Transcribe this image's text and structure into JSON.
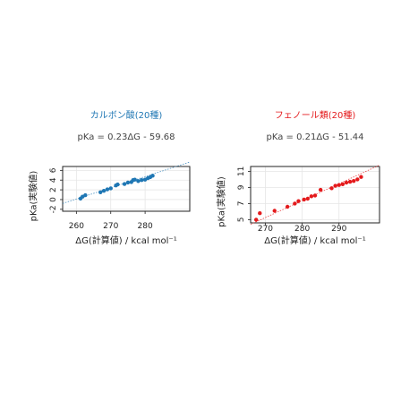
{
  "chart_data": [
    {
      "type": "scatter",
      "title": "カルボン酸(20種)",
      "subtitle": "pKa = 0.23ΔG - 59.68",
      "xlabel": "ΔG(計算値) / kcal mol⁻¹",
      "ylabel": "pKa(実験値)",
      "xlim": [
        256,
        293
      ],
      "ylim": [
        -2.4,
        6.8
      ],
      "xticks": [
        260,
        270,
        280
      ],
      "yticks": [
        -2,
        0,
        2,
        4,
        6
      ],
      "grid": true,
      "fit": {
        "slope": 0.23,
        "intercept": -59.68
      },
      "color": "#1f77b4",
      "points": [
        [
          261.2,
          0.2
        ],
        [
          261.8,
          0.6
        ],
        [
          262.6,
          0.9
        ],
        [
          267.0,
          1.5
        ],
        [
          268.0,
          1.8
        ],
        [
          269.0,
          2.1
        ],
        [
          270.0,
          2.3
        ],
        [
          271.5,
          2.9
        ],
        [
          272.0,
          3.1
        ],
        [
          274.0,
          3.2
        ],
        [
          275.0,
          3.5
        ],
        [
          276.0,
          3.6
        ],
        [
          276.5,
          4.0
        ],
        [
          277.0,
          4.1
        ],
        [
          278.0,
          3.8
        ],
        [
          279.0,
          4.0
        ],
        [
          280.0,
          4.1
        ],
        [
          280.8,
          4.4
        ],
        [
          281.5,
          4.6
        ],
        [
          282.2,
          4.9
        ]
      ]
    },
    {
      "type": "scatter",
      "title": "フェノール類(20種)",
      "subtitle": "pKa = 0.21ΔG - 51.44",
      "xlabel": "ΔG(計算値) / kcal mol⁻¹",
      "ylabel": "pKa(実験値)",
      "xlim": [
        266,
        301
      ],
      "ylim": [
        4.6,
        11.6
      ],
      "xticks": [
        270,
        280,
        290
      ],
      "yticks": [
        5,
        7,
        9,
        11
      ],
      "grid": true,
      "fit": {
        "slope": 0.21,
        "intercept": -51.44
      },
      "color": "#e41a1c",
      "points": [
        [
          267.5,
          5.0
        ],
        [
          268.5,
          5.8
        ],
        [
          272.5,
          6.1
        ],
        [
          276.0,
          6.6
        ],
        [
          278.0,
          7.0
        ],
        [
          279.0,
          7.3
        ],
        [
          280.5,
          7.5
        ],
        [
          281.5,
          7.6
        ],
        [
          282.5,
          7.9
        ],
        [
          283.5,
          8.0
        ],
        [
          285.0,
          8.7
        ],
        [
          288.0,
          8.9
        ],
        [
          289.0,
          9.2
        ],
        [
          290.0,
          9.3
        ],
        [
          291.0,
          9.4
        ],
        [
          292.0,
          9.6
        ],
        [
          293.0,
          9.7
        ],
        [
          294.0,
          9.8
        ],
        [
          295.0,
          10.0
        ],
        [
          296.0,
          10.3
        ]
      ]
    }
  ]
}
